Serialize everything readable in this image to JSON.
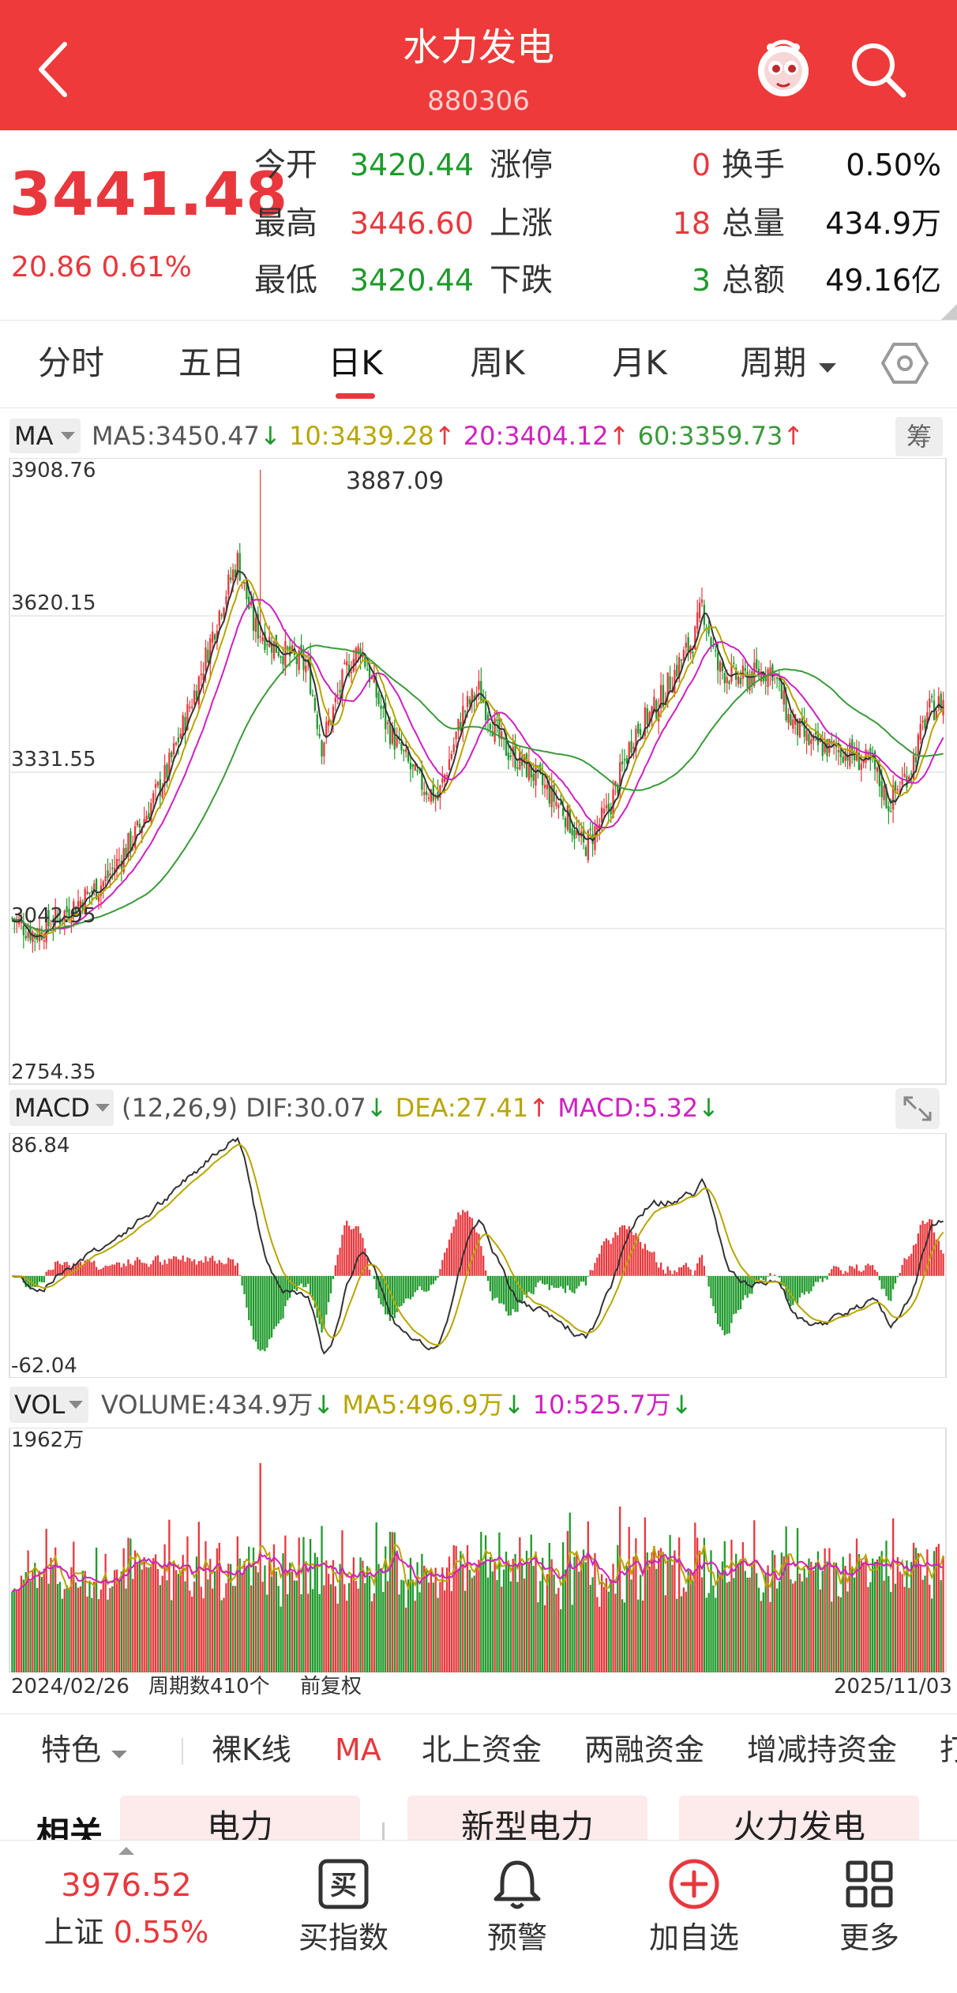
{
  "header": {
    "title": "水力发电",
    "code": "880306"
  },
  "quote": {
    "price": "3441.48",
    "change": "20.86",
    "change_pct": "0.61%",
    "open_label": "今开",
    "open": "3420.44",
    "high_label": "最高",
    "high": "3446.60",
    "low_label": "最低",
    "low": "3420.44",
    "limit_up_label": "涨停",
    "limit_up": "0",
    "rise_label": "上涨",
    "rise": "18",
    "fall_label": "下跌",
    "fall": "3",
    "turnover_label": "换手",
    "turnover": "0.50%",
    "volume_label": "总量",
    "volume": "434.9万",
    "amount_label": "总额",
    "amount": "49.16亿"
  },
  "tabs": [
    {
      "label": "分时"
    },
    {
      "label": "五日"
    },
    {
      "label": "日K"
    },
    {
      "label": "周K"
    },
    {
      "label": "月K"
    },
    {
      "label": "周期"
    }
  ],
  "indicators": {
    "ma": {
      "name": "MA",
      "ma5": "MA5:3450.47",
      "ma10": "10:3439.28",
      "ma20": "20:3404.12",
      "ma60": "60:3359.73",
      "chip_label": "筹"
    },
    "macd": {
      "name": "MACD",
      "params": "(12,26,9)",
      "dif": "DIF:30.07",
      "dea": "DEA:27.41",
      "macd": "MACD:5.32"
    },
    "vol": {
      "name": "VOL",
      "volume": "VOLUME:434.9万",
      "ma5": "MA5:496.9万",
      "ma10": "10:525.7万"
    }
  },
  "kline": {
    "y_labels": [
      "3908.76",
      "3620.15",
      "3331.55",
      "3042.95",
      "2754.35"
    ],
    "max_label": "3887.09"
  },
  "macd_axis": {
    "top": "86.84",
    "bottom": "-62.04"
  },
  "vol_axis": {
    "top": "1962万"
  },
  "axis_footer": {
    "start_date": "2024/02/26",
    "period_count": "周期数410个",
    "adjust": "前复权",
    "end_date": "2025/11/03"
  },
  "menu": [
    "特色",
    "裸K线",
    "MA",
    "北上资金",
    "两融资金",
    "增减持资金",
    "打"
  ],
  "related": {
    "label": "相关",
    "items": [
      "电力",
      "新型电力",
      "火力发电"
    ]
  },
  "bottom_nav": {
    "index_value": "3976.52",
    "index_name": "上证",
    "index_change": "0.55%",
    "buy_index": "买指数",
    "alert": "预警",
    "add_watch": "加自选",
    "more": "更多"
  },
  "colors": {
    "brand": "#ee3a3a",
    "up": "#e8383d",
    "down": "#1f9a2c",
    "ma10": "#b8a500",
    "ma20": "#d020c0",
    "ma60": "#3a9a3a"
  }
}
